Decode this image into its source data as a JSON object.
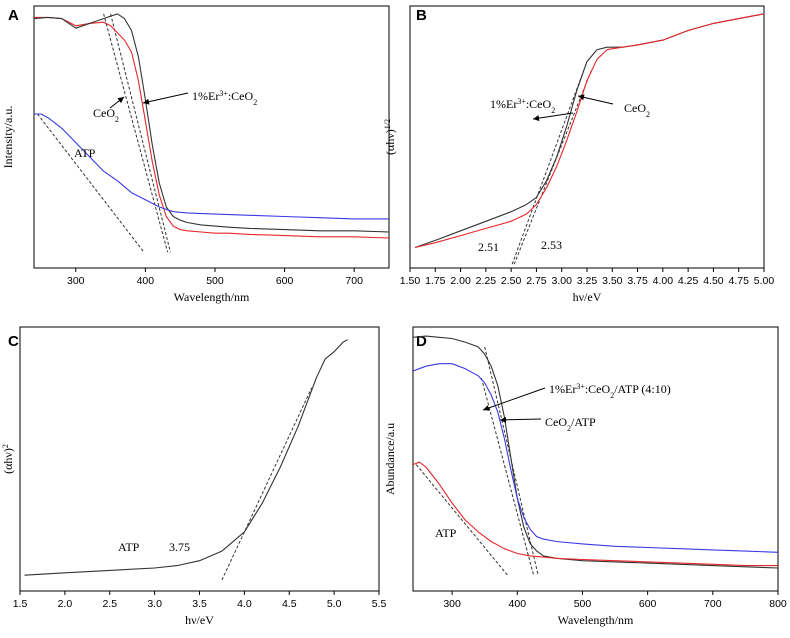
{
  "figure": {
    "layout": "2x2 grid of spectroscopy panels"
  },
  "chart_data": [
    {
      "panel": "A",
      "type": "line",
      "title": "",
      "xlabel": "Wavelength/nm",
      "ylabel": "Intensity/a.u.",
      "xlim": [
        240,
        750
      ],
      "ylim": [
        0,
        1
      ],
      "xticks": [
        300,
        400,
        500,
        600,
        700
      ],
      "yticks": [],
      "series": [
        {
          "name": "CeO2",
          "color": "#e8262a",
          "x": [
            240,
            260,
            280,
            300,
            320,
            340,
            350,
            360,
            370,
            380,
            390,
            400,
            410,
            420,
            430,
            440,
            450,
            460,
            480,
            500,
            520,
            550,
            600,
            650,
            700,
            750
          ],
          "y": [
            0.985,
            0.985,
            0.98,
            0.95,
            0.96,
            0.965,
            0.95,
            0.92,
            0.89,
            0.84,
            0.72,
            0.55,
            0.38,
            0.24,
            0.15,
            0.11,
            0.095,
            0.09,
            0.085,
            0.08,
            0.08,
            0.075,
            0.07,
            0.065,
            0.065,
            0.06
          ]
        },
        {
          "name": "1%Er3+:CeO2",
          "color": "#333333",
          "x": [
            240,
            260,
            280,
            300,
            320,
            340,
            350,
            360,
            370,
            380,
            390,
            400,
            410,
            420,
            430,
            440,
            450,
            460,
            480,
            500,
            520,
            550,
            600,
            650,
            700,
            750
          ],
          "y": [
            0.98,
            0.985,
            0.98,
            0.94,
            0.96,
            0.98,
            0.99,
            1.0,
            0.98,
            0.93,
            0.82,
            0.64,
            0.45,
            0.29,
            0.19,
            0.15,
            0.135,
            0.125,
            0.115,
            0.11,
            0.105,
            0.1,
            0.095,
            0.09,
            0.09,
            0.085
          ]
        },
        {
          "name": "ATP",
          "color": "#3a3ae6",
          "x": [
            240,
            250,
            260,
            280,
            300,
            320,
            340,
            360,
            380,
            400,
            420,
            440,
            460,
            500,
            550,
            600,
            650,
            700,
            750
          ],
          "y": [
            0.58,
            0.58,
            0.565,
            0.52,
            0.46,
            0.4,
            0.34,
            0.3,
            0.25,
            0.22,
            0.19,
            0.17,
            0.165,
            0.16,
            0.155,
            0.15,
            0.145,
            0.14,
            0.14
          ]
        }
      ],
      "tangents": [
        {
          "x": [
            350,
            436
          ],
          "y": [
            1.0,
            0.0
          ]
        },
        {
          "x": [
            340,
            432
          ],
          "y": [
            1.0,
            0.0
          ]
        },
        {
          "x": [
            245,
            398
          ],
          "y": [
            0.58,
            0.0
          ]
        }
      ],
      "annotations": [
        {
          "text": "1%Er3+:CeO2",
          "parts": [
            [
              "1%Er",
              "base"
            ],
            [
              "3+",
              "sup"
            ],
            [
              ":CeO",
              "base"
            ],
            [
              "2",
              "sub"
            ]
          ]
        },
        {
          "text": "CeO2",
          "parts": [
            [
              "CeO",
              "base"
            ],
            [
              "2",
              "sub"
            ]
          ]
        },
        {
          "text": "ATP",
          "parts": [
            [
              "ATP",
              "base"
            ]
          ]
        }
      ]
    },
    {
      "panel": "B",
      "type": "line",
      "title": "",
      "xlabel": "hν/eV",
      "ylabel": "(αhν)1/2",
      "xlim": [
        1.5,
        5.0
      ],
      "ylim": [
        0,
        1
      ],
      "xticks": [
        "1.50",
        "1.75",
        "2.00",
        "2.25",
        "2.50",
        "2.75",
        "3.00",
        "3.25",
        "3.50",
        "3.75",
        "4.00",
        "4.25",
        "4.50",
        "4.75",
        "5.00"
      ],
      "yticks": [],
      "series": [
        {
          "name": "1%Er3+:CeO2",
          "color": "#333333",
          "x": [
            1.55,
            1.75,
            2.0,
            2.25,
            2.5,
            2.65,
            2.75,
            2.85,
            2.95,
            3.05,
            3.15,
            3.25,
            3.35,
            3.45,
            3.6,
            3.75,
            4.0,
            4.25,
            4.5,
            4.75,
            5.0
          ],
          "y": [
            0.02,
            0.05,
            0.09,
            0.13,
            0.17,
            0.2,
            0.23,
            0.3,
            0.4,
            0.53,
            0.68,
            0.8,
            0.85,
            0.86,
            0.86,
            0.87,
            0.89,
            0.93,
            0.96,
            0.98,
            1.0
          ]
        },
        {
          "name": "CeO2",
          "color": "#e8262a",
          "x": [
            1.55,
            1.75,
            2.0,
            2.25,
            2.5,
            2.65,
            2.75,
            2.85,
            2.95,
            3.05,
            3.15,
            3.25,
            3.35,
            3.45,
            3.6,
            3.75,
            4.0,
            4.25,
            4.5,
            4.75,
            5.0
          ],
          "y": [
            0.02,
            0.04,
            0.07,
            0.1,
            0.13,
            0.16,
            0.2,
            0.27,
            0.36,
            0.47,
            0.59,
            0.72,
            0.81,
            0.85,
            0.86,
            0.87,
            0.89,
            0.93,
            0.96,
            0.98,
            1.0
          ]
        }
      ],
      "tangents": [
        {
          "x": [
            2.51,
            3.25
          ],
          "y": [
            -0.05,
            0.8
          ]
        },
        {
          "x": [
            2.53,
            3.3
          ],
          "y": [
            -0.05,
            0.77
          ]
        }
      ],
      "annotations": [
        {
          "text": "1%Er3+:CeO2",
          "parts": [
            [
              "1%Er",
              "base"
            ],
            [
              "3+",
              "sup"
            ],
            [
              ":CeO",
              "base"
            ],
            [
              "2",
              "sub"
            ]
          ]
        },
        {
          "text": "CeO2",
          "parts": [
            [
              "CeO",
              "base"
            ],
            [
              "2",
              "sub"
            ]
          ]
        },
        {
          "text": "2.51",
          "parts": [
            [
              "2.51",
              "base"
            ]
          ]
        },
        {
          "text": "2.53",
          "parts": [
            [
              "2.53",
              "base"
            ]
          ]
        }
      ]
    },
    {
      "panel": "C",
      "type": "line",
      "title": "",
      "xlabel": "hν/eV",
      "ylabel": "(αhν)2",
      "xlim": [
        1.5,
        5.5
      ],
      "ylim": [
        0,
        1
      ],
      "xticks": [
        "1.5",
        "2.0",
        "2.5",
        "3.0",
        "3.5",
        "4.0",
        "4.5",
        "5.0",
        "5.5"
      ],
      "yticks": [],
      "series": [
        {
          "name": "ATP",
          "color": "#333333",
          "x": [
            1.55,
            2.0,
            2.5,
            3.0,
            3.25,
            3.5,
            3.75,
            4.0,
            4.2,
            4.4,
            4.6,
            4.8,
            4.9,
            5.0,
            5.1,
            5.15
          ],
          "y": [
            0.0,
            0.01,
            0.02,
            0.03,
            0.04,
            0.06,
            0.1,
            0.18,
            0.3,
            0.45,
            0.62,
            0.82,
            0.9,
            0.93,
            0.97,
            0.98
          ]
        }
      ],
      "tangents": [
        {
          "x": [
            3.75,
            4.75
          ],
          "y": [
            -0.02,
            0.78
          ]
        }
      ],
      "annotations": [
        {
          "text": "ATP",
          "parts": [
            [
              "ATP",
              "base"
            ]
          ]
        },
        {
          "text": "3.75",
          "parts": [
            [
              "3.75",
              "base"
            ]
          ]
        }
      ]
    },
    {
      "panel": "D",
      "type": "line",
      "title": "",
      "xlabel": "Wavelength/nm",
      "ylabel": "Abundance/a.u",
      "xlim": [
        240,
        800
      ],
      "ylim": [
        0,
        1
      ],
      "xticks": [
        300,
        400,
        500,
        600,
        700,
        800
      ],
      "yticks": [],
      "series": [
        {
          "name": "CeO2/ATP",
          "color": "#333333",
          "x": [
            240,
            260,
            280,
            300,
            320,
            340,
            350,
            360,
            370,
            380,
            390,
            400,
            410,
            420,
            430,
            440,
            460,
            500,
            550,
            600,
            650,
            700,
            750,
            800
          ],
          "y": [
            0.99,
            0.995,
            0.99,
            0.985,
            0.97,
            0.95,
            0.92,
            0.87,
            0.79,
            0.66,
            0.49,
            0.32,
            0.2,
            0.13,
            0.1,
            0.08,
            0.07,
            0.06,
            0.055,
            0.05,
            0.045,
            0.04,
            0.035,
            0.03
          ]
        },
        {
          "name": "1%Er3+:CeO2/ATP (4:10)",
          "color": "#3a3ae6",
          "x": [
            240,
            260,
            280,
            300,
            320,
            340,
            350,
            360,
            370,
            380,
            390,
            400,
            410,
            420,
            430,
            440,
            460,
            500,
            550,
            600,
            650,
            700,
            750,
            800
          ],
          "y": [
            0.85,
            0.87,
            0.88,
            0.88,
            0.86,
            0.83,
            0.8,
            0.75,
            0.68,
            0.57,
            0.44,
            0.32,
            0.24,
            0.19,
            0.16,
            0.15,
            0.14,
            0.13,
            0.12,
            0.115,
            0.11,
            0.105,
            0.1,
            0.095
          ]
        },
        {
          "name": "ATP",
          "color": "#e8262a",
          "x": [
            240,
            250,
            260,
            280,
            300,
            320,
            340,
            360,
            380,
            400,
            420,
            440,
            460,
            500,
            550,
            600,
            650,
            700,
            750,
            800
          ],
          "y": [
            0.46,
            0.47,
            0.45,
            0.38,
            0.3,
            0.23,
            0.18,
            0.14,
            0.11,
            0.09,
            0.08,
            0.075,
            0.07,
            0.065,
            0.06,
            0.055,
            0.05,
            0.045,
            0.04,
            0.04
          ]
        }
      ],
      "tangents": [
        {
          "x": [
            350,
            432
          ],
          "y": [
            0.95,
            0.0
          ]
        },
        {
          "x": [
            345,
            425
          ],
          "y": [
            0.82,
            0.0
          ]
        },
        {
          "x": [
            245,
            385
          ],
          "y": [
            0.46,
            0.0
          ]
        }
      ],
      "annotations": [
        {
          "text": "1%Er3+:CeO2/ATP (4:10)",
          "parts": [
            [
              "1%Er",
              "base"
            ],
            [
              "3+",
              "sup"
            ],
            [
              ":CeO",
              "base"
            ],
            [
              "2",
              "sub"
            ],
            [
              "/ATP (4:10)",
              "base"
            ]
          ]
        },
        {
          "text": "CeO2/ATP",
          "parts": [
            [
              "CeO",
              "base"
            ],
            [
              "2",
              "sub"
            ],
            [
              "/ATP",
              "base"
            ]
          ]
        },
        {
          "text": "ATP",
          "parts": [
            [
              "ATP",
              "base"
            ]
          ]
        }
      ]
    }
  ]
}
